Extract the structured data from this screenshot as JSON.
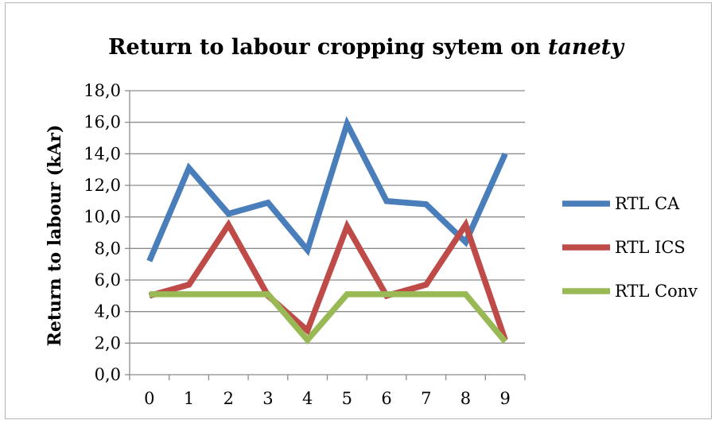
{
  "chart_data": {
    "type": "line",
    "title": {
      "text": "Return to labour cropping sytem on ",
      "italic_text": "tanety"
    },
    "xlabel": "",
    "ylabel": "Return to labour (kAr)",
    "categories": [
      "0",
      "1",
      "2",
      "3",
      "4",
      "5",
      "6",
      "7",
      "8",
      "9"
    ],
    "ylim": [
      0,
      18
    ],
    "yticks": [
      "0,0",
      "2,0",
      "4,0",
      "6,0",
      "8,0",
      "10,0",
      "12,0",
      "14,0",
      "16,0",
      "18,0"
    ],
    "grid": true,
    "legend_position": "right",
    "series": [
      {
        "name": "RTL CA",
        "color": "#4a7ebb",
        "values": [
          7.2,
          13.1,
          10.2,
          10.9,
          7.9,
          15.9,
          11.0,
          10.8,
          8.4,
          14.0
        ]
      },
      {
        "name": "RTL ICS",
        "color": "#be4b48",
        "values": [
          5.0,
          5.7,
          9.5,
          5.0,
          2.8,
          9.4,
          5.0,
          5.7,
          9.5,
          2.2
        ]
      },
      {
        "name": "RTL Conv",
        "color": "#98b954",
        "values": [
          5.1,
          5.1,
          5.1,
          5.1,
          2.2,
          5.1,
          5.1,
          5.1,
          5.1,
          2.1
        ]
      }
    ]
  }
}
